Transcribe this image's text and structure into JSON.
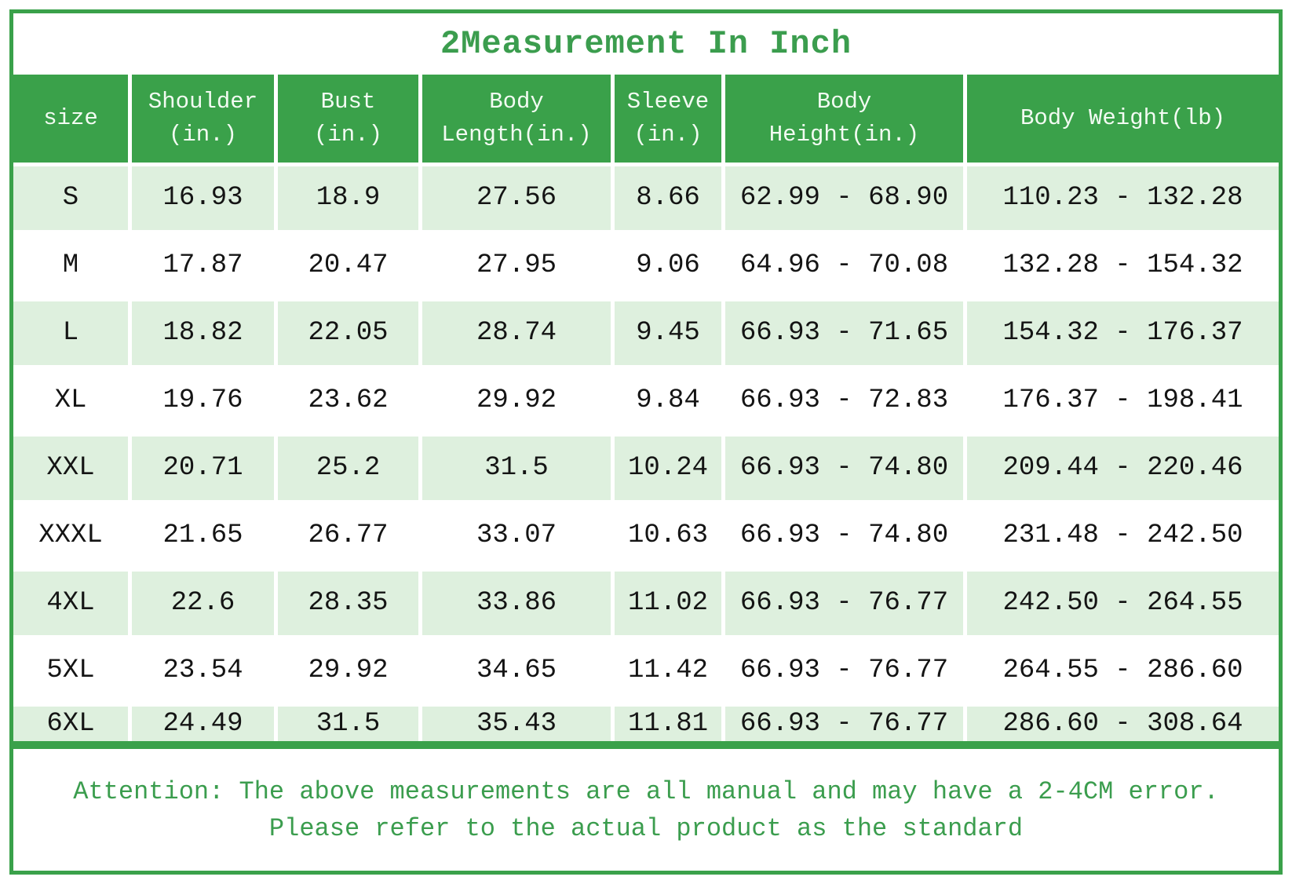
{
  "chart_data": {
    "type": "table",
    "title": "2Measurement In Inch",
    "columns": [
      "size",
      "Shoulder\n(in.)",
      "Bust\n(in.)",
      "Body\nLength(in.)",
      "Sleeve\n(in.)",
      "Body\nHeight(in.)",
      "Body Weight(lb)"
    ],
    "rows": [
      [
        "S",
        "16.93",
        "18.9",
        "27.56",
        "8.66",
        "62.99 - 68.90",
        "110.23 - 132.28"
      ],
      [
        "M",
        "17.87",
        "20.47",
        "27.95",
        "9.06",
        "64.96 - 70.08",
        "132.28 - 154.32"
      ],
      [
        "L",
        "18.82",
        "22.05",
        "28.74",
        "9.45",
        "66.93 - 71.65",
        "154.32 - 176.37"
      ],
      [
        "XL",
        "19.76",
        "23.62",
        "29.92",
        "9.84",
        "66.93 - 72.83",
        "176.37 - 198.41"
      ],
      [
        "XXL",
        "20.71",
        "25.2",
        "31.5",
        "10.24",
        "66.93 - 74.80",
        "209.44 - 220.46"
      ],
      [
        "XXXL",
        "21.65",
        "26.77",
        "33.07",
        "10.63",
        "66.93 - 74.80",
        "231.48 - 242.50"
      ],
      [
        "4XL",
        "22.6",
        "28.35",
        "33.86",
        "11.02",
        "66.93 - 76.77",
        "242.50 - 264.55"
      ],
      [
        "5XL",
        "23.54",
        "29.92",
        "34.65",
        "11.42",
        "66.93 - 76.77",
        "264.55 - 286.60"
      ],
      [
        "6XL",
        "24.49",
        "31.5",
        "35.43",
        "11.81",
        "66.93 - 76.77",
        "286.60 - 308.64"
      ]
    ],
    "layout": {
      "header_position": "top",
      "row_striping": "alternating mint/white",
      "grid": "white separators"
    }
  },
  "footer": {
    "line1": "Attention: The above measurements are all manual and may have a 2-4CM error.",
    "line2": "Please refer to the actual product as the standard"
  },
  "colors": {
    "green": "#3AA14A",
    "row_mint": "#DEF0DE",
    "header_text": "#F2FBF2",
    "text_green": "#3B9D4E",
    "data_text": "#141414"
  }
}
